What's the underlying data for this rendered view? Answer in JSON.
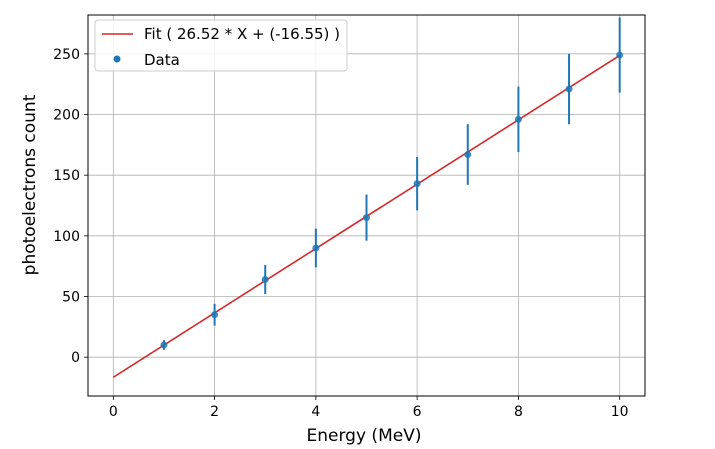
{
  "chart_data": {
    "type": "scatter",
    "xlabel": "Energy (MeV)",
    "ylabel": "photoelectrons count",
    "xlim": [
      -0.5,
      10.5
    ],
    "ylim": [
      -32,
      282
    ],
    "xticks": [
      0,
      2,
      4,
      6,
      8,
      10
    ],
    "yticks": [
      0,
      50,
      100,
      150,
      200,
      250
    ],
    "grid": true,
    "legend_position": "top-left",
    "series": [
      {
        "name": "Fit ( 26.52 * X + (-16.55) )",
        "kind": "line",
        "color": "#d62728",
        "slope": 26.52,
        "intercept": -16.55,
        "x_range": [
          0,
          10
        ]
      },
      {
        "name": "Data",
        "kind": "errorbar-points",
        "color": "#1f77b4",
        "x": [
          1,
          2,
          3,
          4,
          5,
          6,
          7,
          8,
          9,
          10
        ],
        "y": [
          10,
          35,
          64,
          90,
          115,
          143,
          167,
          196,
          221,
          249
        ],
        "yerr": [
          4,
          9,
          12,
          16,
          19,
          22,
          25,
          27,
          29,
          31
        ]
      }
    ]
  }
}
